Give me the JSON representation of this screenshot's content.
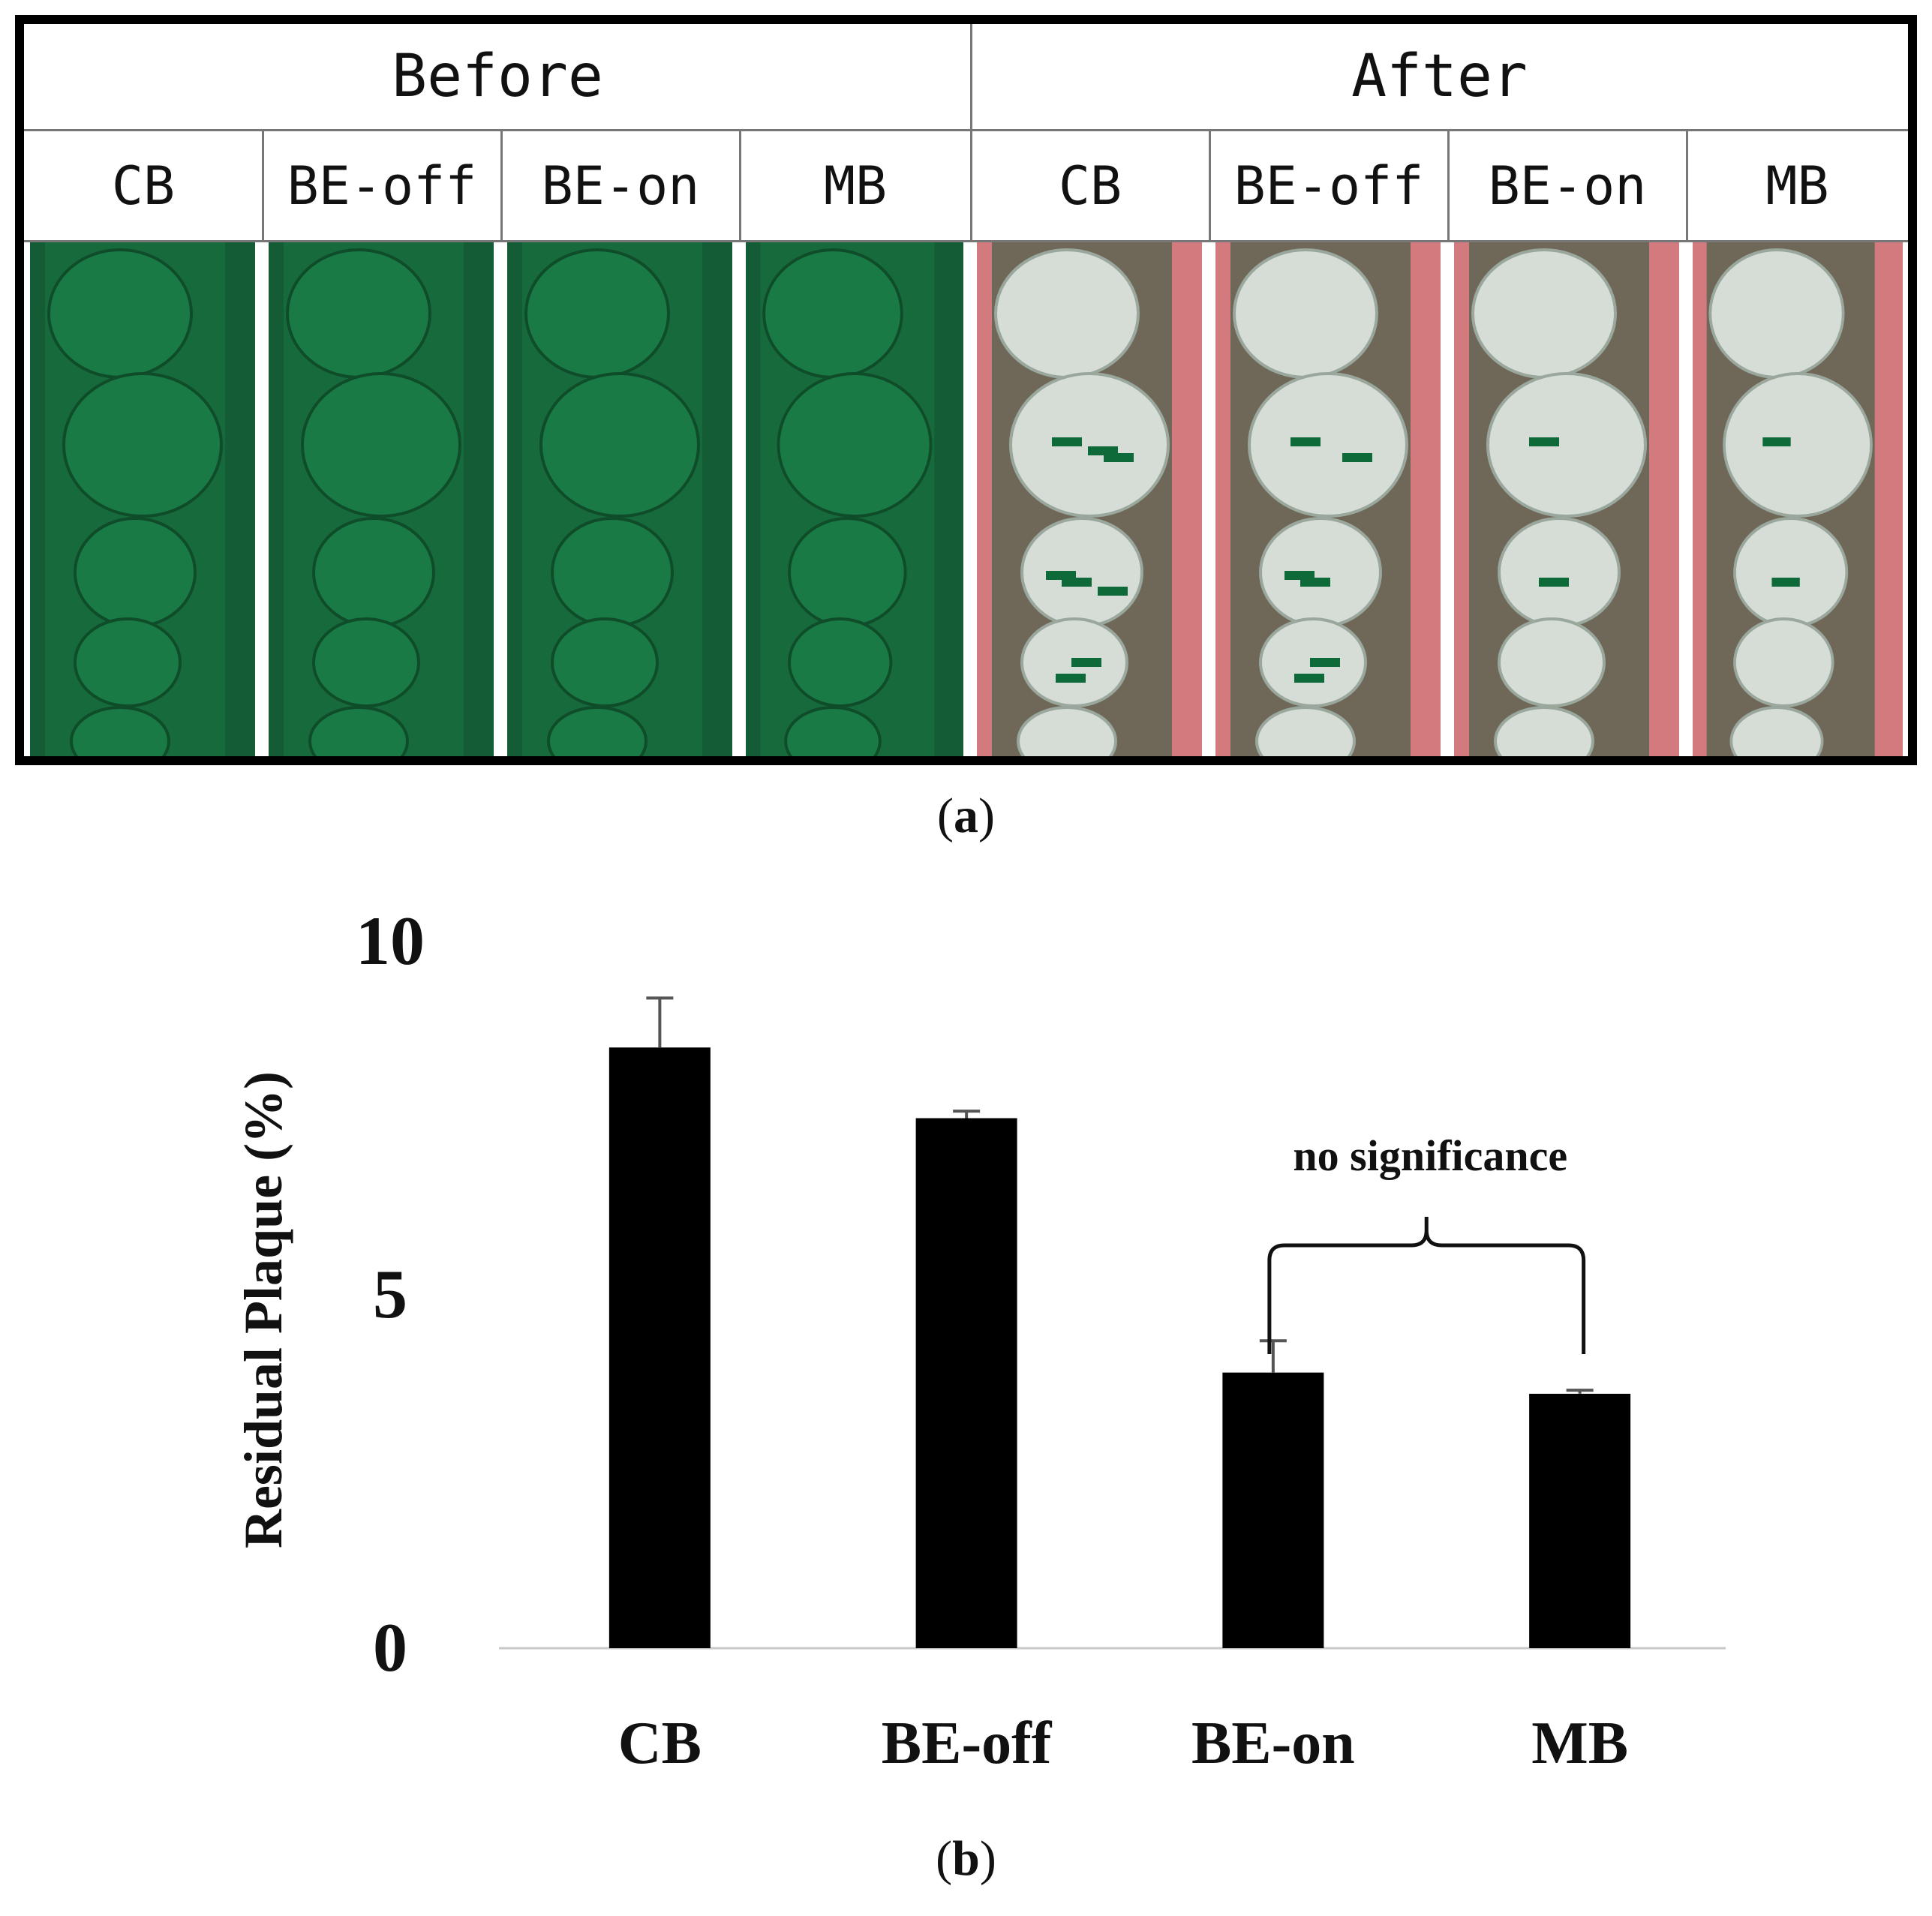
{
  "panel_a": {
    "groups": [
      {
        "label": "Before",
        "columns": [
          "CB",
          "BE-off",
          "BE-on",
          "MB"
        ]
      },
      {
        "label": "After",
        "columns": [
          "CB",
          "BE-off",
          "BE-on",
          "MB"
        ]
      }
    ],
    "colors": {
      "stain": "#1a7a45",
      "background_after": "#d27a7e",
      "tooth_after": "#d6dcd6"
    },
    "caption_open": "(",
    "caption_letter": "a",
    "caption_close": ")"
  },
  "chart_data": {
    "type": "bar",
    "categories": [
      "CB",
      "BE-off",
      "BE-on",
      "MB"
    ],
    "values": [
      8.5,
      7.5,
      3.9,
      3.6
    ],
    "error_upper": [
      0.7,
      0.1,
      0.45,
      0.05
    ],
    "ylabel": "Residual Plaque (%)",
    "ylim": [
      0,
      10
    ],
    "yticks": [
      0,
      5,
      10
    ],
    "grid": false,
    "bar_color": "#000000",
    "annotation": {
      "text": "no significance",
      "spans": [
        "BE-on",
        "MB"
      ]
    }
  },
  "panel_b": {
    "caption_open": "(",
    "caption_letter": "b",
    "caption_close": ")"
  }
}
